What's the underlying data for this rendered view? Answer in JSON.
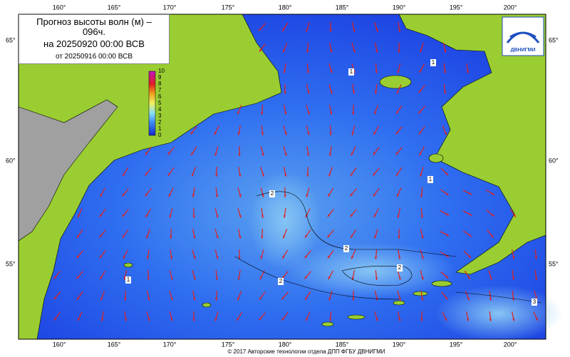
{
  "header": {
    "title": "Прогноз высоты волн (м) – 096ч.",
    "valid": "на 20250920 00:00 ВСВ",
    "issued": "от 20250916 00:00 ВСВ"
  },
  "logo": {
    "text": "ДВНИГМИ"
  },
  "map": {
    "lon_labels": [
      "160°",
      "165°",
      "170°",
      "175°",
      "180°",
      "185°",
      "190°",
      "195°",
      "200°"
    ],
    "lat_labels": [
      "65°",
      "60°",
      "55°"
    ],
    "contour_labels": [
      1,
      1,
      2,
      2,
      2,
      2,
      1,
      1,
      3
    ]
  },
  "colorbar": {
    "ticks": [
      0,
      1,
      2,
      3,
      4,
      5,
      6,
      7,
      8,
      9,
      10
    ]
  },
  "footer": "© 2017 Авторские технологии отдела ДПП ФГБУ ДВНИГМИ"
}
